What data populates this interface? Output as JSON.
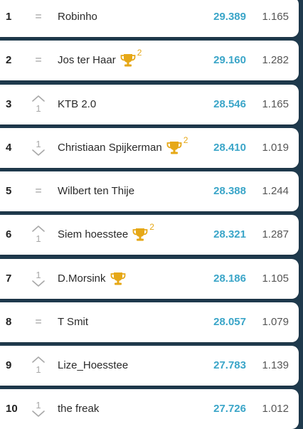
{
  "ranking": {
    "rows": [
      {
        "rank": "1",
        "trend": "same",
        "change": "",
        "name": "Robinho",
        "trophy": false,
        "trophy_count": "",
        "score": "29.389",
        "avg": "1.165"
      },
      {
        "rank": "2",
        "trend": "same",
        "change": "",
        "name": "Jos ter Haar",
        "trophy": true,
        "trophy_count": "2",
        "score": "29.160",
        "avg": "1.282"
      },
      {
        "rank": "3",
        "trend": "up",
        "change": "1",
        "name": "KTB 2.0",
        "trophy": false,
        "trophy_count": "",
        "score": "28.546",
        "avg": "1.165"
      },
      {
        "rank": "4",
        "trend": "down",
        "change": "1",
        "name": "Christiaan Spijkerman",
        "trophy": true,
        "trophy_count": "2",
        "score": "28.410",
        "avg": "1.019"
      },
      {
        "rank": "5",
        "trend": "same",
        "change": "",
        "name": "Wilbert ten Thije",
        "trophy": false,
        "trophy_count": "",
        "score": "28.388",
        "avg": "1.244"
      },
      {
        "rank": "6",
        "trend": "up",
        "change": "1",
        "name": "Siem hoesstee",
        "trophy": true,
        "trophy_count": "2",
        "score": "28.321",
        "avg": "1.287"
      },
      {
        "rank": "7",
        "trend": "down",
        "change": "1",
        "name": "D.Morsink",
        "trophy": true,
        "trophy_count": "",
        "score": "28.186",
        "avg": "1.105"
      },
      {
        "rank": "8",
        "trend": "same",
        "change": "",
        "name": "T Smit",
        "trophy": false,
        "trophy_count": "",
        "score": "28.057",
        "avg": "1.079"
      },
      {
        "rank": "9",
        "trend": "up",
        "change": "1",
        "name": "Lize_Hoesstee",
        "trophy": false,
        "trophy_count": "",
        "score": "27.783",
        "avg": "1.139"
      },
      {
        "rank": "10",
        "trend": "down",
        "change": "1",
        "name": "the freak",
        "trophy": false,
        "trophy_count": "",
        "score": "27.726",
        "avg": "1.012"
      }
    ],
    "same_symbol": "=",
    "colors": {
      "background": "#1f3a4d",
      "score": "#3aa5c8",
      "trophy": "#e6a817",
      "trend": "#a8a8a8"
    }
  }
}
